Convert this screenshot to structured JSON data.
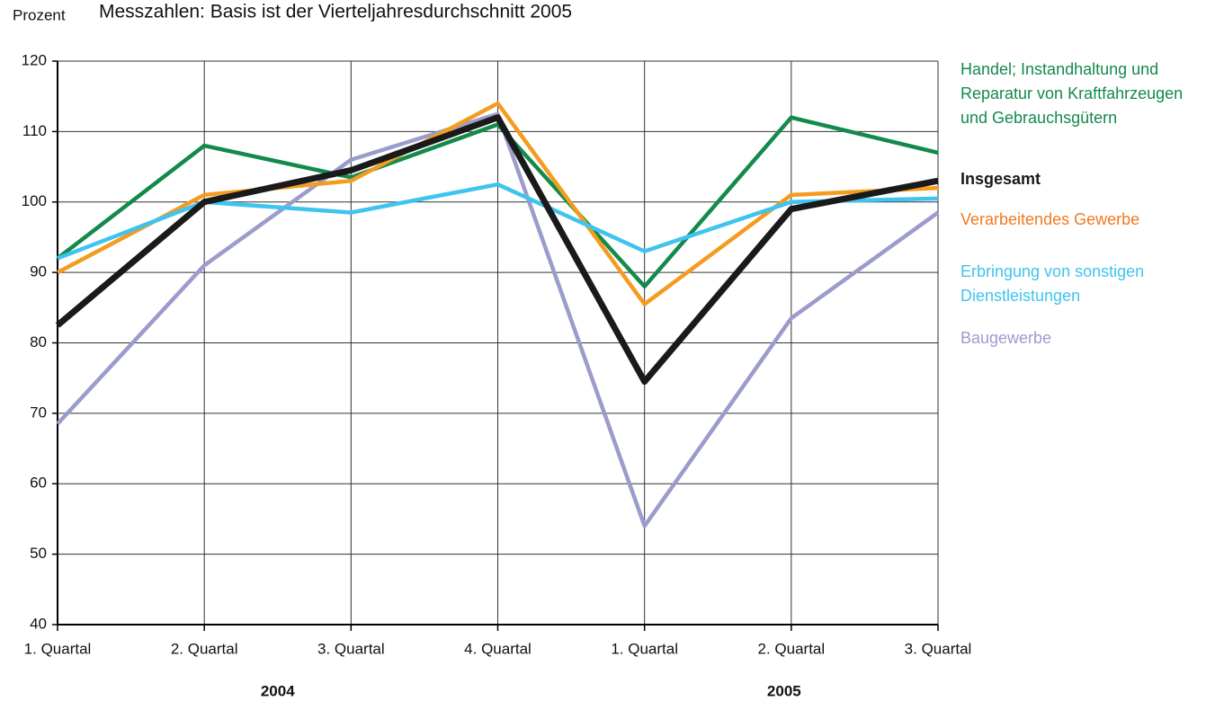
{
  "chart_data": {
    "type": "line",
    "title": "Messzahlen: Basis ist der Vierteljahresdurchschnitt 2005",
    "y_label": "Prozent",
    "categories": [
      "1. Quartal",
      "2. Quartal",
      "3. Quartal",
      "4. Quartal",
      "1. Quartal",
      "2. Quartal",
      "3. Quartal"
    ],
    "x_groups": [
      "2004",
      "2005"
    ],
    "ylim": [
      40,
      120
    ],
    "yticks": [
      40,
      50,
      60,
      70,
      80,
      90,
      100,
      110,
      120
    ],
    "grid": true,
    "series": [
      {
        "name": "Handel; Instandhaltung und Reparatur von Kraftfahrzeugen und Gebrauchsgütern",
        "color": "#138a4b",
        "values": [
          92,
          108,
          103.5,
          111,
          88,
          112,
          107
        ]
      },
      {
        "name": "Insgesamt",
        "color": "#1a1a1a",
        "values": [
          82.5,
          100,
          104.5,
          112,
          74.5,
          99,
          103
        ]
      },
      {
        "name": "Verarbeitendes Gewerbe",
        "color": "#f39c1f",
        "values": [
          90,
          101,
          103,
          114,
          85.5,
          101,
          102
        ]
      },
      {
        "name": "Erbringung von sonstigen Dienstleistungen",
        "color": "#3ec4ef",
        "values": [
          92,
          100,
          98.5,
          102.5,
          93,
          100,
          100.5
        ]
      },
      {
        "name": "Baugewerbe",
        "color": "#9b9ccc",
        "values": [
          68.5,
          91,
          106,
          112.5,
          54,
          83.5,
          98.5
        ]
      }
    ]
  }
}
